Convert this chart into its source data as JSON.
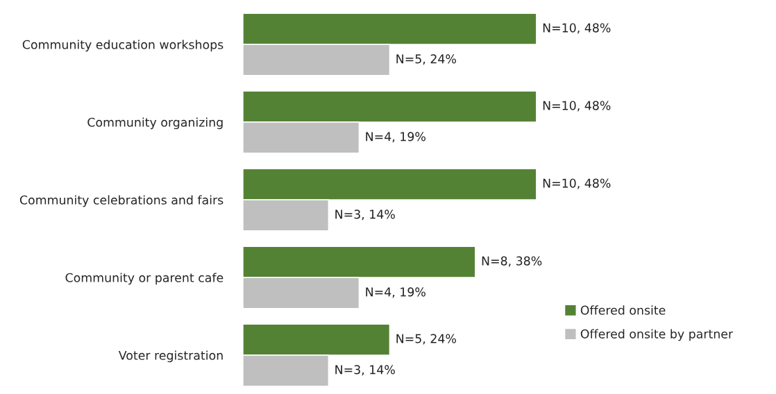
{
  "chart_data": {
    "type": "bar",
    "orientation": "horizontal",
    "categories": [
      "Community education workshops",
      "Community organizing",
      "Community celebrations and fairs",
      "Community or parent cafe",
      "Voter registration"
    ],
    "series": [
      {
        "name": "Offered onsite",
        "color": "#548235",
        "values": [
          48,
          48,
          48,
          38,
          24
        ],
        "value_labels": [
          "N=10, 48%",
          "N=10, 48%",
          "N=10, 48%",
          "N=8, 38%",
          "N=5, 24%"
        ]
      },
      {
        "name": "Offered onsite by partner",
        "color": "#bfbfbf",
        "values": [
          24,
          19,
          14,
          19,
          14
        ],
        "value_labels": [
          "N=5, 24%",
          "N=4, 19%",
          "N=3, 14%",
          "N=4, 19%",
          "N=3, 14%"
        ]
      }
    ],
    "legend": "right",
    "grid": false
  }
}
